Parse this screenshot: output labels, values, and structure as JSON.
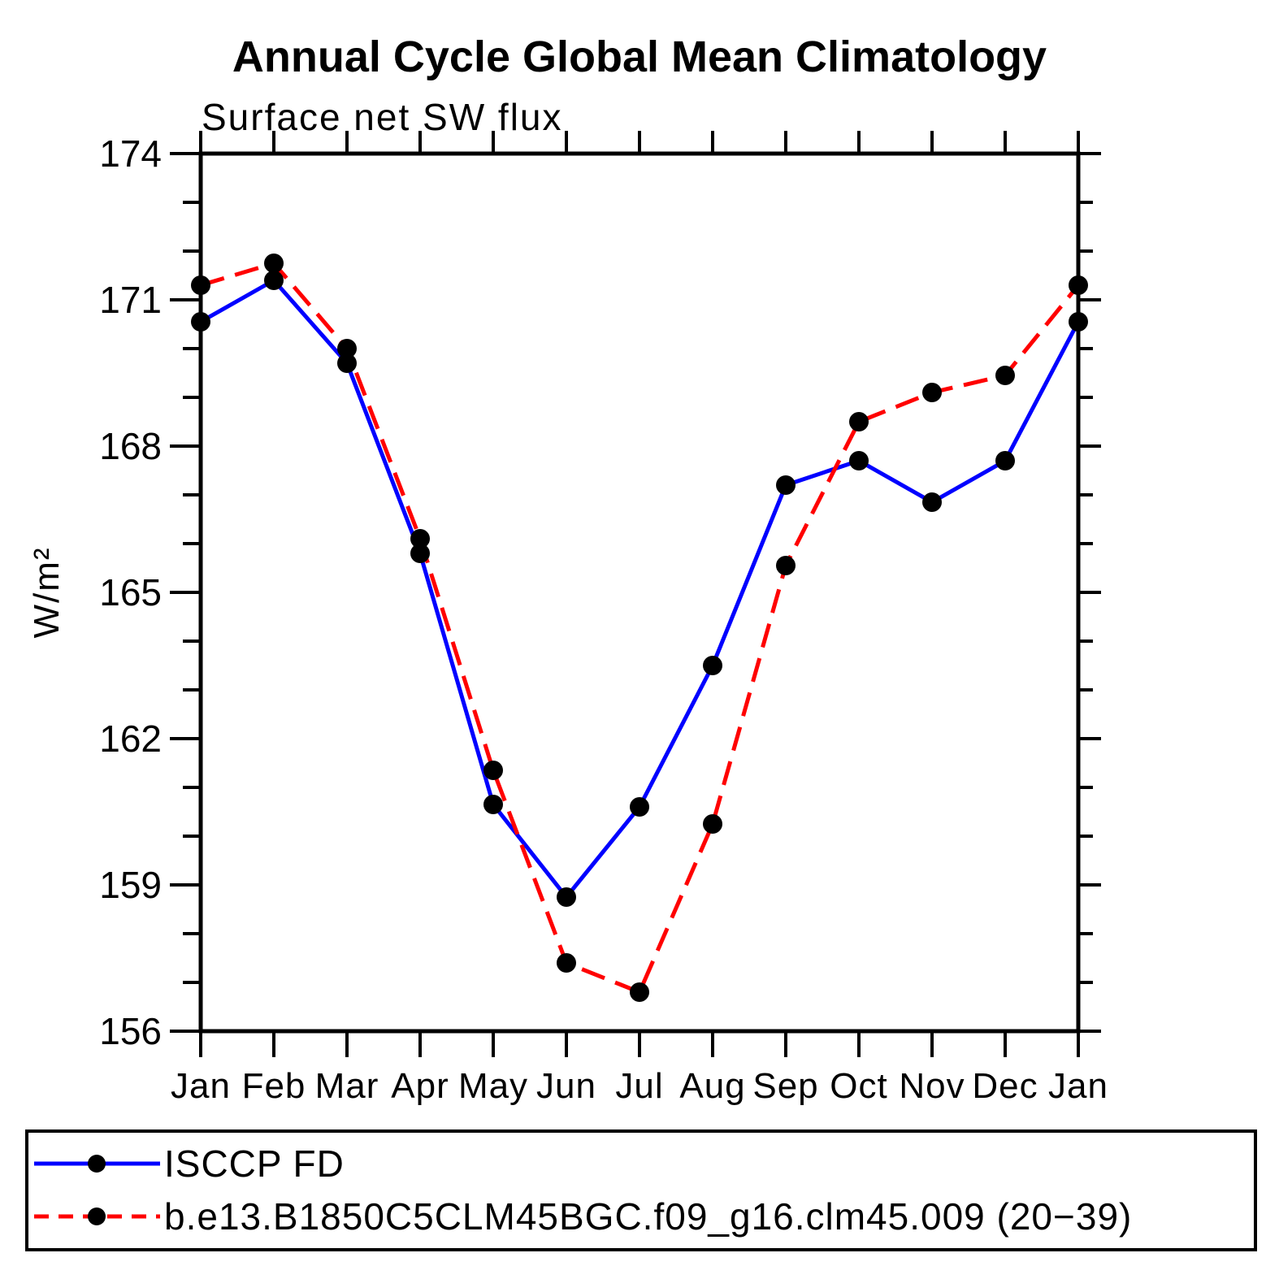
{
  "page": {
    "background": "#ffffff"
  },
  "chart_data": {
    "type": "line",
    "title": "Annual Cycle Global Mean Climatology",
    "subtitle": "Surface net SW flux",
    "ylabel": "W/m²",
    "xlabel": "",
    "ylim": [
      156,
      174
    ],
    "yticks_major": [
      156,
      159,
      162,
      165,
      168,
      171,
      174
    ],
    "ytick_minor_step": 1,
    "x_categories": [
      "Jan",
      "Feb",
      "Mar",
      "Apr",
      "May",
      "Jun",
      "Jul",
      "Aug",
      "Sep",
      "Oct",
      "Nov",
      "Dec",
      "Jan"
    ],
    "grid": "off",
    "legend_position": "bottom-box",
    "frame_color": "#000000",
    "series": [
      {
        "name": "ISCCP FD",
        "color": "#0000ff",
        "style": "solid",
        "marker": "circle",
        "marker_color": "#000000",
        "values": [
          170.55,
          171.4,
          169.7,
          165.8,
          160.65,
          158.75,
          160.6,
          163.5,
          167.2,
          167.7,
          166.85,
          167.7,
          170.55
        ]
      },
      {
        "name": "b.e13.B1850C5CLM45BGC.f09_g16.clm45.009 (20−39)",
        "color": "#ff0000",
        "style": "dashed",
        "marker": "circle",
        "marker_color": "#000000",
        "values": [
          171.3,
          171.75,
          170.0,
          166.1,
          161.35,
          157.4,
          156.8,
          160.25,
          165.55,
          168.5,
          169.1,
          169.45,
          171.3
        ]
      }
    ]
  }
}
